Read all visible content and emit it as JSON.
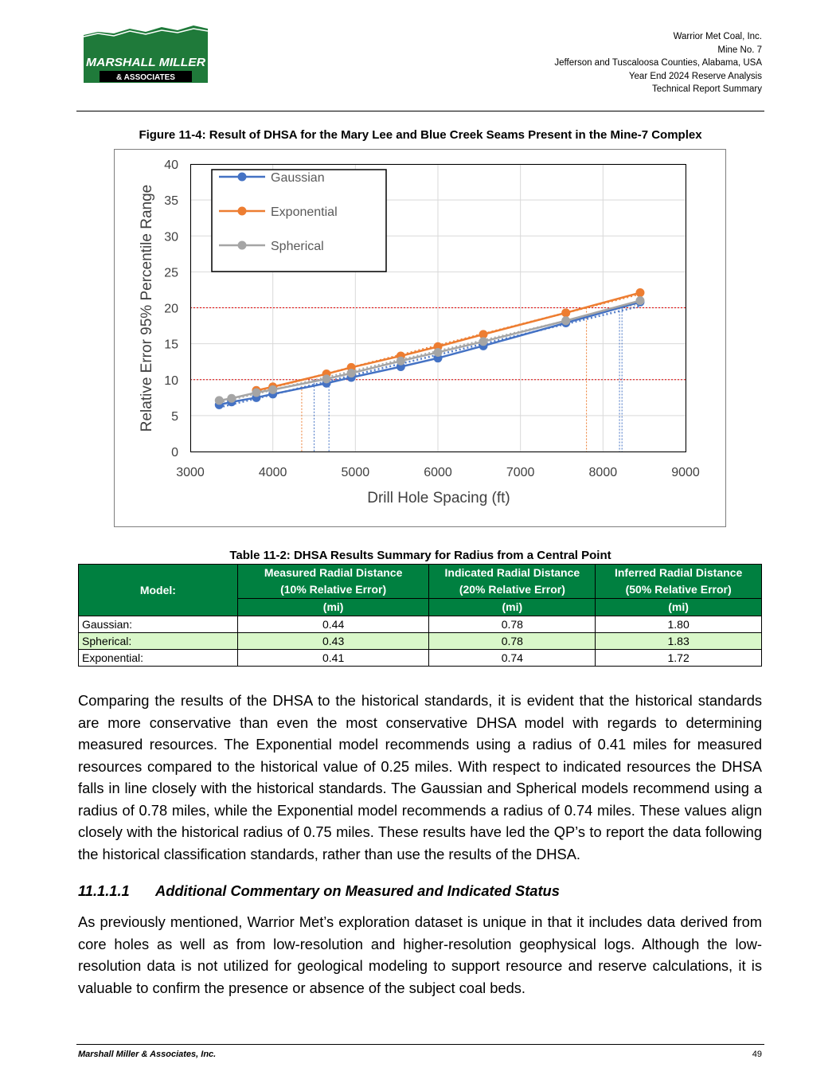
{
  "header": {
    "logo_top": "MARSHALL MILLER",
    "logo_bottom": "& ASSOCIATES",
    "lines": [
      "Warrior Met Coal, Inc.",
      "Mine No. 7",
      "Jefferson and Tuscaloosa Counties, Alabama, USA",
      "Year End 2024 Reserve Analysis",
      "Technical Report Summary"
    ]
  },
  "figure": {
    "title": "Figure 11-4: Result of DHSA for the Mary Lee and Blue Creek Seams Present in the Mine-7 Complex"
  },
  "chart_data": {
    "type": "line",
    "xlabel": "Drill Hole Spacing (ft)",
    "ylabel": "Relative Error 95% Percentile Range",
    "xlim": [
      3000,
      9000
    ],
    "ylim": [
      0,
      40
    ],
    "xticks": [
      "3000",
      "4000",
      "5000",
      "6000",
      "7000",
      "8000",
      "9000"
    ],
    "yticks": [
      "0",
      "5",
      "10",
      "15",
      "20",
      "25",
      "30",
      "35",
      "40"
    ],
    "grid": true,
    "legend_position": "top-left",
    "series": [
      {
        "name": "Gaussian",
        "color": "#4472c4",
        "x": [
          3350,
          3500,
          3800,
          4000,
          4650,
          4950,
          5550,
          6000,
          6550,
          7550,
          8450
        ],
        "y": [
          6.5,
          6.9,
          7.5,
          8.0,
          9.5,
          10.3,
          11.8,
          13.0,
          14.7,
          17.9,
          20.8
        ]
      },
      {
        "name": "Exponential",
        "color": "#ed7d31",
        "x": [
          3800,
          4000,
          4650,
          4950,
          5550,
          6000,
          6550,
          7550,
          8450
        ],
        "y": [
          8.5,
          9.0,
          10.8,
          11.7,
          13.3,
          14.6,
          16.3,
          19.3,
          22.1
        ]
      },
      {
        "name": "Spherical",
        "color": "#a5a5a5",
        "x": [
          3350,
          3500,
          3800,
          4000,
          4650,
          4950,
          5550,
          6000,
          6550,
          7550,
          8450
        ],
        "y": [
          7.1,
          7.4,
          8.2,
          8.6,
          10.1,
          10.9,
          12.6,
          13.8,
          15.3,
          18.2,
          21.0
        ]
      }
    ],
    "reference_lines_y": [
      10,
      20
    ],
    "reference_lines_x": [
      {
        "x": 4350,
        "y": 10,
        "color": "#ed7d31"
      },
      {
        "x": 4500,
        "y": 10,
        "color": "#4472c4"
      },
      {
        "x": 4680,
        "y": 10,
        "color": "#4472c4"
      },
      {
        "x": 7800,
        "y": 20,
        "color": "#ed7d31"
      },
      {
        "x": 8200,
        "y": 20,
        "color": "#4472c4"
      },
      {
        "x": 8230,
        "y": 20,
        "color": "#4472c4"
      }
    ]
  },
  "table": {
    "title": "Table 11-2:  DHSA Results Summary for Radius from a Central Point",
    "model_header": "Model:",
    "columns": [
      {
        "line1": "Measured Radial Distance",
        "line2": "(10% Relative Error)",
        "unit": "(mi)"
      },
      {
        "line1": "Indicated Radial Distance",
        "line2": "(20% Relative Error)",
        "unit": "(mi)"
      },
      {
        "line1": "Inferred Radial Distance",
        "line2": "(50% Relative Error)",
        "unit": "(mi)"
      }
    ],
    "rows": [
      {
        "model": "Gaussian:",
        "values": [
          "0.44",
          "0.78",
          "1.80"
        ]
      },
      {
        "model": "Spherical:",
        "values": [
          "0.43",
          "0.78",
          "1.83"
        ]
      },
      {
        "model": "Exponential:",
        "values": [
          "0.41",
          "0.74",
          "1.72"
        ]
      }
    ]
  },
  "paragraph1": "Comparing the results of the DHSA to the historical standards, it is evident that the historical standards are more conservative than even the most conservative DHSA model with regards to determining measured resources.  The Exponential model recommends using a radius of 0.41 miles for measured resources compared to the historical value of 0.25 miles.  With respect to indicated resources the DHSA falls in line closely with the historical standards.  The Gaussian and Spherical models recommend using a radius of 0.78 miles, while the Exponential model recommends a radius of 0.74 miles.  These values align closely with the historical radius of 0.75 miles.  These results have led the QP’s to report the data following the historical classification standards, rather than use the results of the DHSA.",
  "section": {
    "number": "11.1.1.1",
    "title": "Additional Commentary on Measured and Indicated Status"
  },
  "paragraph2": "As previously mentioned, Warrior Met’s exploration dataset is unique in that it includes data derived from core holes as well as from low-resolution and higher-resolution geophysical logs.  Although the low-resolution data is not utilized for geological modeling to support resource and reserve calculations, it is valuable to confirm the presence or absence of the subject coal beds.",
  "footer": {
    "company": "Marshall Miller & Associates, Inc.",
    "page": "49"
  },
  "colors": {
    "table_header": "#008040",
    "highlight_row": "#d9f7c9",
    "reference_line": "#e00000"
  }
}
